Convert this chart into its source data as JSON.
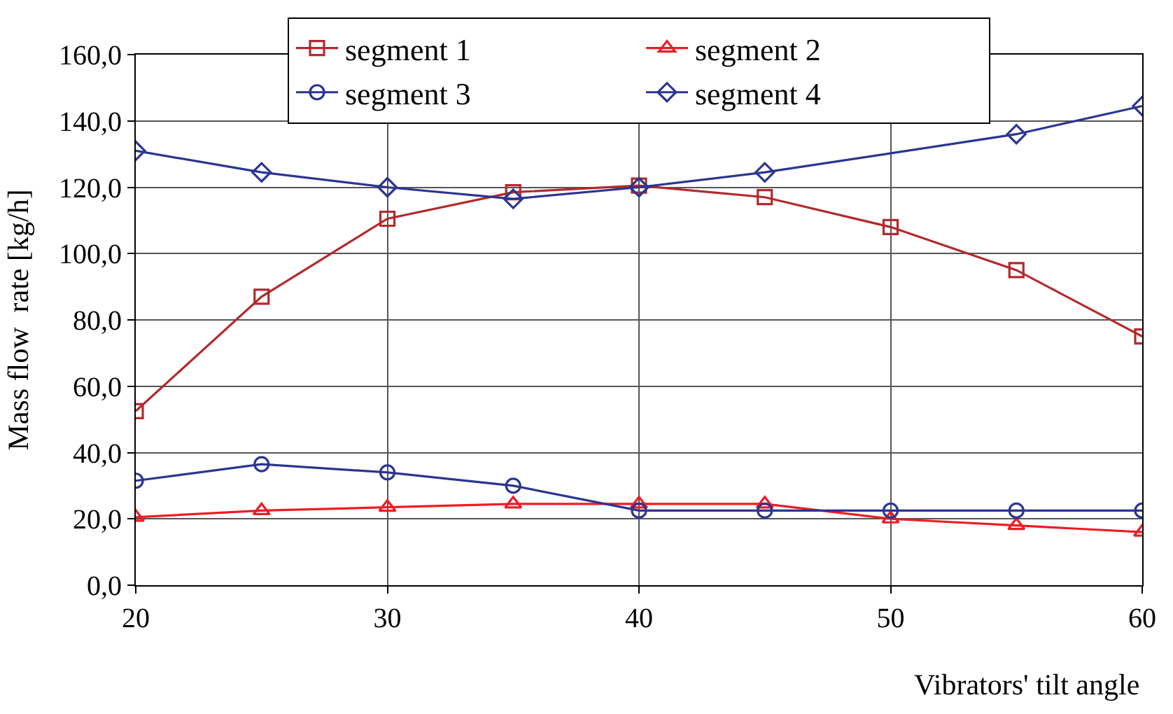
{
  "chart_data": {
    "type": "line",
    "xlabel": "Vibrators' tilt angle",
    "ylabel": "Mass flow  rate [kg/h]",
    "x": [
      20,
      25,
      30,
      35,
      40,
      45,
      50,
      55,
      60
    ],
    "series": [
      {
        "name": "segment 1",
        "color": "#b22a2e",
        "marker": "square",
        "values": [
          52.5,
          87,
          110.5,
          118.5,
          120.5,
          117,
          108,
          95,
          75
        ]
      },
      {
        "name": "segment 2",
        "color": "#ee1c25",
        "marker": "triangle",
        "values": [
          20.5,
          22.5,
          23.5,
          24.5,
          24.5,
          24.5,
          20,
          18,
          16
        ]
      },
      {
        "name": "segment 3",
        "color": "#2b3590",
        "marker": "circle",
        "values": [
          31.5,
          36.5,
          34,
          30,
          22.5,
          22.5,
          22.5,
          22.5,
          22.5
        ]
      },
      {
        "name": "segment 4",
        "color": "#2b3590",
        "marker": "diamond",
        "values": [
          131,
          124.5,
          120,
          116.5,
          120,
          124.5,
          null,
          136,
          144.5
        ]
      }
    ],
    "xlim": [
      20,
      60
    ],
    "xticks": [
      20,
      30,
      40,
      50,
      60
    ],
    "ylim": [
      0,
      160
    ],
    "yticks": [
      {
        "value": 0,
        "label": "0,0"
      },
      {
        "value": 20,
        "label": "20,0"
      },
      {
        "value": 40,
        "label": "40,0"
      },
      {
        "value": 60,
        "label": "60,0"
      },
      {
        "value": 80,
        "label": "80,0"
      },
      {
        "value": 100,
        "label": "100,0"
      },
      {
        "value": 120,
        "label": "120,0"
      },
      {
        "value": 140,
        "label": "140,0"
      },
      {
        "value": 160,
        "label": "160,0"
      }
    ],
    "grid": true,
    "legend": "top"
  }
}
